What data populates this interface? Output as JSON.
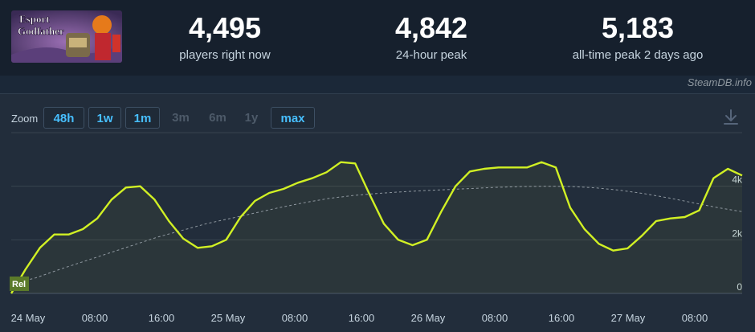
{
  "game": {
    "logo_text_1": "Esport",
    "logo_text_2": "Godfather"
  },
  "stats": [
    {
      "value": "4,495",
      "label": "players right now"
    },
    {
      "value": "4,842",
      "label": "24-hour peak"
    },
    {
      "value": "5,183",
      "label": "all-time peak 2 days ago"
    }
  ],
  "watermark": "SteamDB.info",
  "zoom": {
    "label": "Zoom",
    "buttons": [
      {
        "label": "48h",
        "active": true
      },
      {
        "label": "1w",
        "active": true
      },
      {
        "label": "1m",
        "active": true
      },
      {
        "label": "3m",
        "active": false
      },
      {
        "label": "6m",
        "active": false
      },
      {
        "label": "1y",
        "active": false
      },
      {
        "label": "max",
        "active": true
      }
    ]
  },
  "download_icon": "download-icon",
  "colors": {
    "line": "#d1f024",
    "avg": "#8f98a0",
    "accent": "#47bfff"
  },
  "chart_data": {
    "type": "line",
    "x_tick_labels": [
      "24 May",
      "08:00",
      "16:00",
      "25 May",
      "08:00",
      "16:00",
      "26 May",
      "08:00",
      "16:00",
      "27 May",
      "08:00"
    ],
    "y_tick_labels": [
      "0",
      "2k",
      "4k"
    ],
    "ylim": [
      0,
      6000
    ],
    "flag_label": "Rel",
    "series": [
      {
        "kind": "players",
        "values": [
          0,
          900,
          1700,
          2200,
          2200,
          2400,
          2800,
          3500,
          3950,
          4000,
          3500,
          2700,
          2050,
          1700,
          1760,
          2000,
          2850,
          3450,
          3750,
          3900,
          4130,
          4300,
          4520,
          4900,
          4850,
          3700,
          2600,
          2000,
          1800,
          2000,
          3050,
          4000,
          4550,
          4650,
          4700,
          4700,
          4700,
          4900,
          4700,
          3200,
          2400,
          1850,
          1600,
          1680,
          2150,
          2700,
          2800,
          2850,
          3100,
          4300,
          4650,
          4400
        ]
      },
      {
        "kind": "average",
        "values": [
          350,
          580,
          900,
          1200,
          1500,
          1800,
          2100,
          2350,
          2600,
          2800,
          3000,
          3200,
          3380,
          3540,
          3650,
          3730,
          3790,
          3840,
          3880,
          3920,
          3960,
          3990,
          4000,
          3990,
          3940,
          3850,
          3720,
          3560,
          3380,
          3200,
          3050
        ]
      }
    ]
  }
}
